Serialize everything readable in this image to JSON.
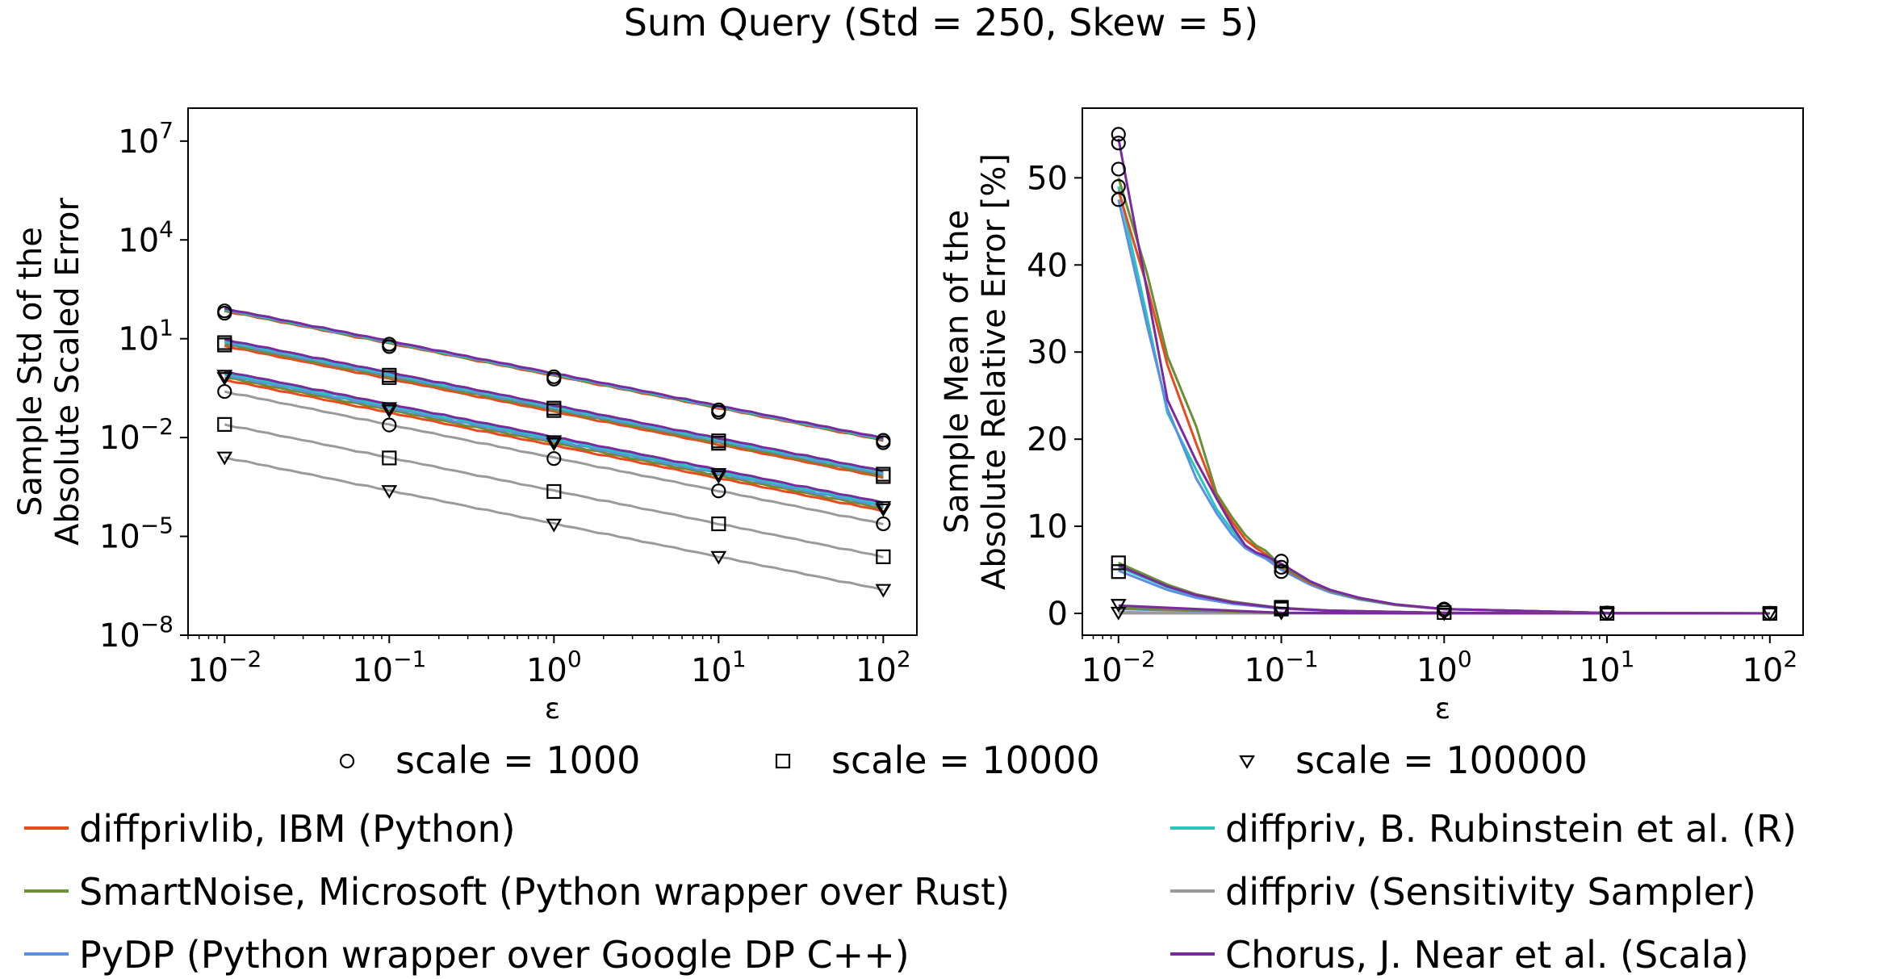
{
  "figure": {
    "suptitle": "Sum Query (Std = 250, Skew = 5)"
  },
  "colors": {
    "diffprivlib": "#e8491d",
    "smartnoise": "#6a8e34",
    "pydp": "#5b8fe6",
    "diffpriv_r": "#25c7bd",
    "sampler": "#9a9a9a",
    "chorus": "#7a2a9e"
  },
  "legend_markers": [
    {
      "marker": "circle",
      "label": "scale = 1000"
    },
    {
      "marker": "square",
      "label": "scale = 10000"
    },
    {
      "marker": "triangle",
      "label": "scale = 100000"
    }
  ],
  "legend_libraries": [
    {
      "key": "diffprivlib",
      "label": "diffprivlib, IBM (Python)"
    },
    {
      "key": "smartnoise",
      "label": "SmartNoise, Microsoft (Python wrapper over Rust)"
    },
    {
      "key": "pydp",
      "label": "PyDP (Python wrapper over Google DP C++)"
    },
    {
      "key": "diffpriv_r",
      "label": "diffpriv, B. Rubinstein et al. (R)"
    },
    {
      "key": "sampler",
      "label": "diffpriv (Sensitivity Sampler)"
    },
    {
      "key": "chorus",
      "label": "Chorus, J. Near et al. (Scala)"
    }
  ],
  "chart_data": [
    {
      "type": "line",
      "xscale": "log",
      "yscale": "log",
      "xlabel": "ε",
      "ylabel": "Sample Std of the\nAbsolute Scaled Error",
      "xlim": [
        0.006,
        160
      ],
      "ylim": [
        1e-08,
        100000000.0
      ],
      "xticks": [
        {
          "v": 0.01,
          "e": "−2"
        },
        {
          "v": 0.1,
          "e": "−1"
        },
        {
          "v": 1,
          "e": "0"
        },
        {
          "v": 10,
          "e": "1"
        },
        {
          "v": 100,
          "e": "2"
        }
      ],
      "yticks": [
        {
          "v": 1e-08,
          "e": "−8"
        },
        {
          "v": 1e-05,
          "e": "−5"
        },
        {
          "v": 0.01,
          "e": "−2"
        },
        {
          "v": 10,
          "e": "1"
        },
        {
          "v": 10000.0,
          "e": "4"
        },
        {
          "v": 10000000.0,
          "e": "7"
        }
      ],
      "grid": false,
      "marker_x": [
        0.01,
        0.1,
        1,
        10,
        100
      ],
      "groups": [
        {
          "marker": "circle",
          "libraries": [
            "diffprivlib",
            "smartnoise",
            "pydp",
            "diffpriv_r",
            "chorus"
          ],
          "values": [
            70,
            6.8,
            0.7,
            0.069,
            0.0082
          ],
          "spread": [
            1.0,
            1.18
          ]
        },
        {
          "marker": "square",
          "libraries": [
            "diffprivlib",
            "smartnoise",
            "pydp",
            "diffpriv_r",
            "chorus"
          ],
          "values": [
            7.6,
            0.78,
            0.078,
            0.0079,
            0.00077
          ],
          "spread": [
            0.8,
            1.25
          ]
        },
        {
          "marker": "triangle",
          "libraries": [
            "diffprivlib",
            "smartnoise",
            "pydp",
            "diffpriv_r",
            "chorus"
          ],
          "values": [
            0.76,
            0.079,
            0.0078,
            0.00079,
            7.9e-05
          ],
          "spread": [
            0.75,
            1.35
          ]
        },
        {
          "marker": "circle",
          "libraries": [
            "sampler"
          ],
          "values": [
            0.25,
            0.024,
            0.0023,
            0.00024,
            2.4e-05
          ],
          "spread": [
            1.0
          ]
        },
        {
          "marker": "square",
          "libraries": [
            "sampler"
          ],
          "values": [
            0.025,
            0.0024,
            0.00023,
            2.4e-05,
            2.4e-06
          ],
          "spread": [
            1.0
          ]
        },
        {
          "marker": "triangle",
          "libraries": [
            "sampler"
          ],
          "values": [
            0.0025,
            0.00024,
            2.3e-05,
            2.4e-06,
            2.4e-07
          ],
          "spread": [
            1.0
          ]
        }
      ]
    },
    {
      "type": "line",
      "xscale": "log",
      "yscale": "linear",
      "xlabel": "ε",
      "ylabel": "Sample Mean of the\nAbsolute Relative Error [%]",
      "xlim": [
        0.006,
        160
      ],
      "ylim": [
        -2.5,
        58
      ],
      "xticks": [
        {
          "v": 0.01,
          "e": "−2"
        },
        {
          "v": 0.1,
          "e": "−1"
        },
        {
          "v": 1,
          "e": "0"
        },
        {
          "v": 10,
          "e": "1"
        },
        {
          "v": 100,
          "e": "2"
        }
      ],
      "yticks": [
        0,
        10,
        20,
        30,
        40,
        50
      ],
      "grid": false,
      "curves": {
        "scale_1000": {
          "x": [
            0.01,
            0.015,
            0.02,
            0.03,
            0.04,
            0.05,
            0.06,
            0.07,
            0.08,
            0.1,
            0.15,
            0.2,
            0.3,
            0.5,
            1,
            10,
            100
          ],
          "series": {
            "diffprivlib": [
              48.5,
              37.5,
              28.5,
              19.5,
              13.5,
              10.5,
              8.5,
              7.5,
              6.8,
              5.3,
              3.5,
              2.6,
              1.75,
              1.0,
              0.5,
              0.05,
              0.005
            ],
            "smartnoise": [
              50,
              39,
              29.5,
              21.5,
              13.8,
              11.0,
              9.0,
              7.8,
              7.2,
              5.4,
              3.6,
              2.6,
              1.7,
              1.0,
              0.5,
              0.05,
              0.005
            ],
            "pydp": [
              47.5,
              33,
              23.5,
              15.5,
              11.5,
              9.0,
              7.5,
              6.8,
              6.3,
              5.0,
              3.3,
              2.4,
              1.6,
              0.95,
              0.48,
              0.05,
              0.005
            ],
            "diffpriv_r": [
              49,
              34,
              23,
              16.5,
              12.0,
              9.5,
              7.6,
              7.0,
              6.5,
              5.1,
              3.4,
              2.5,
              1.7,
              0.98,
              0.5,
              0.05,
              0.005
            ],
            "chorus": [
              54.5,
              37,
              24.5,
              17.5,
              13.2,
              10.0,
              7.8,
              7.0,
              6.6,
              5.7,
              3.7,
              2.7,
              1.8,
              1.05,
              0.5,
              0.05,
              0.005
            ],
            "sampler": [
              0.15,
              0.1,
              0.08,
              0.06,
              0.05,
              0.04,
              0.035,
              0.03,
              0.028,
              0.025,
              0.02,
              0.015,
              0.01,
              0.008,
              0.005,
              0.001,
              0.0002
            ]
          },
          "marker": "circle",
          "marker_values": [
            55,
            54,
            51,
            49,
            47.5
          ]
        },
        "scale_10000": {
          "x": [
            0.01,
            0.02,
            0.03,
            0.05,
            0.1,
            0.2,
            1,
            10,
            100
          ],
          "series": {
            "diffprivlib": [
              5.6,
              3.1,
              2.1,
              1.3,
              0.6,
              0.32,
              0.06,
              0.006,
              0.0006
            ],
            "smartnoise": [
              5.8,
              3.3,
              2.2,
              1.35,
              0.62,
              0.33,
              0.06,
              0.006,
              0.0006
            ],
            "pydp": [
              4.9,
              2.7,
              1.8,
              1.1,
              0.55,
              0.3,
              0.06,
              0.006,
              0.0006
            ],
            "diffpriv_r": [
              5.3,
              3.0,
              2.0,
              1.2,
              0.58,
              0.31,
              0.06,
              0.006,
              0.0006
            ],
            "chorus": [
              5.5,
              3.1,
              2.1,
              1.25,
              0.6,
              0.32,
              0.06,
              0.006,
              0.0006
            ],
            "sampler": [
              0.02,
              0.015,
              0.012,
              0.01,
              0.008,
              0.005,
              0.002,
              0.0005,
              0.0001
            ]
          },
          "marker": "square",
          "marker_values": [
            5.8,
            4.8
          ]
        },
        "scale_100000": {
          "x": [
            0.01,
            0.1,
            1,
            10,
            100
          ],
          "series": {
            "diffprivlib": [
              0.6,
              0.06,
              0.006,
              0.0006,
              6e-05
            ],
            "smartnoise": [
              0.62,
              0.06,
              0.006,
              0.0006,
              6e-05
            ],
            "pydp": [
              0.5,
              0.05,
              0.005,
              0.0005,
              5e-05
            ],
            "diffpriv_r": [
              0.55,
              0.055,
              0.0055,
              0.00055,
              5.5e-05
            ],
            "chorus": [
              0.9,
              0.07,
              0.007,
              0.0007,
              7e-05
            ],
            "sampler": [
              0.01,
              0.005,
              0.001,
              0.0002,
              5e-05
            ]
          },
          "marker": "triangle",
          "marker_values": [
            1.0,
            0.1
          ]
        }
      },
      "markers_at_x": {
        "0.1": {
          "circle": [
            6.0,
            5.3,
            4.8
          ],
          "square": [
            0.7,
            0.5
          ],
          "triangle": [
            0.1
          ]
        },
        "1": {
          "circle": [
            0.5,
            0.4
          ],
          "square": [
            0.1
          ],
          "triangle": [
            0.01
          ]
        },
        "10": {
          "circle": [
            0.05
          ],
          "square": [
            0.01
          ],
          "triangle": [
            0.001
          ]
        },
        "100": {
          "circle": [
            0.01
          ],
          "square": [
            0.001
          ],
          "triangle": [
            0.0001
          ]
        }
      }
    }
  ]
}
